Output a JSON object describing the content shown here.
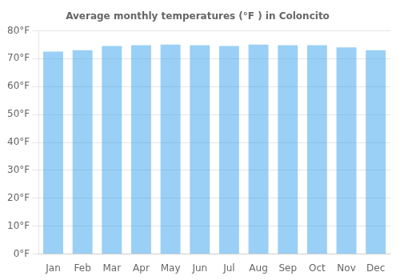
{
  "chart_data": {
    "type": "bar",
    "title": "Average monthly temperatures (°F ) in Coloncito",
    "categories": [
      "Jan",
      "Feb",
      "Mar",
      "Apr",
      "May",
      "Jun",
      "Jul",
      "Aug",
      "Sep",
      "Oct",
      "Nov",
      "Dec"
    ],
    "values": [
      72.5,
      73.0,
      74.5,
      74.8,
      75.0,
      74.8,
      74.5,
      75.0,
      74.8,
      74.8,
      74.0,
      73.0
    ],
    "ylim": [
      0,
      80
    ],
    "yticks": [
      {
        "value": 0,
        "label": "0°F"
      },
      {
        "value": 10,
        "label": "10°F"
      },
      {
        "value": 20,
        "label": "20°F"
      },
      {
        "value": 30,
        "label": "30°F"
      },
      {
        "value": 40,
        "label": "40°F"
      },
      {
        "value": 50,
        "label": "50°F"
      },
      {
        "value": 60,
        "label": "60°F"
      },
      {
        "value": 70,
        "label": "70°F"
      },
      {
        "value": 80,
        "label": "80°F"
      }
    ],
    "grid": true
  }
}
